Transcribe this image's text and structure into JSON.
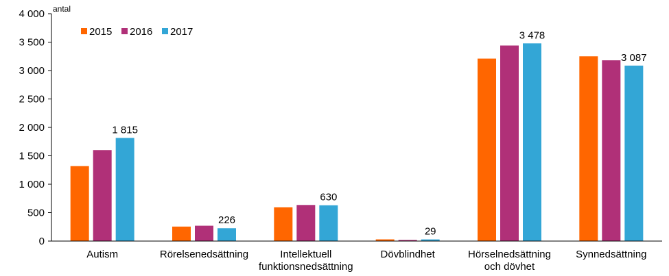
{
  "chart_data": {
    "type": "bar",
    "ylabel": "antal",
    "ylim": [
      0,
      4000
    ],
    "yticks": [
      0,
      500,
      1000,
      1500,
      2000,
      2500,
      3000,
      3500,
      4000
    ],
    "ytick_labels": [
      "0",
      "500",
      "1 000",
      "1 500",
      "2 000",
      "2 500",
      "3 000",
      "3 500",
      "4 000"
    ],
    "categories": [
      [
        "Autism"
      ],
      [
        "Rörelsenedsättning"
      ],
      [
        "Intellektuell",
        "funktionsnedsättning"
      ],
      [
        "Dövblindhet"
      ],
      [
        "Hörselnedsättning",
        "och dövhet"
      ],
      [
        "Synnedsättning"
      ]
    ],
    "series": [
      {
        "name": "2015",
        "color": "#FF6600",
        "values": [
          1320,
          255,
          595,
          30,
          3210,
          3250
        ]
      },
      {
        "name": "2016",
        "color": "#B03078",
        "values": [
          1600,
          270,
          635,
          20,
          3440,
          3180
        ]
      },
      {
        "name": "2017",
        "color": "#33A6D6",
        "values": [
          1815,
          226,
          630,
          29,
          3478,
          3087
        ]
      }
    ],
    "data_labels": [
      {
        "series": 2,
        "category": 0,
        "text": "1 815"
      },
      {
        "series": 2,
        "category": 1,
        "text": "226"
      },
      {
        "series": 2,
        "category": 2,
        "text": "630"
      },
      {
        "series": 2,
        "category": 3,
        "text": "29"
      },
      {
        "series": 2,
        "category": 4,
        "text": "3 478"
      },
      {
        "series": 2,
        "category": 5,
        "text": "3 087"
      }
    ],
    "legend": "top-left"
  }
}
